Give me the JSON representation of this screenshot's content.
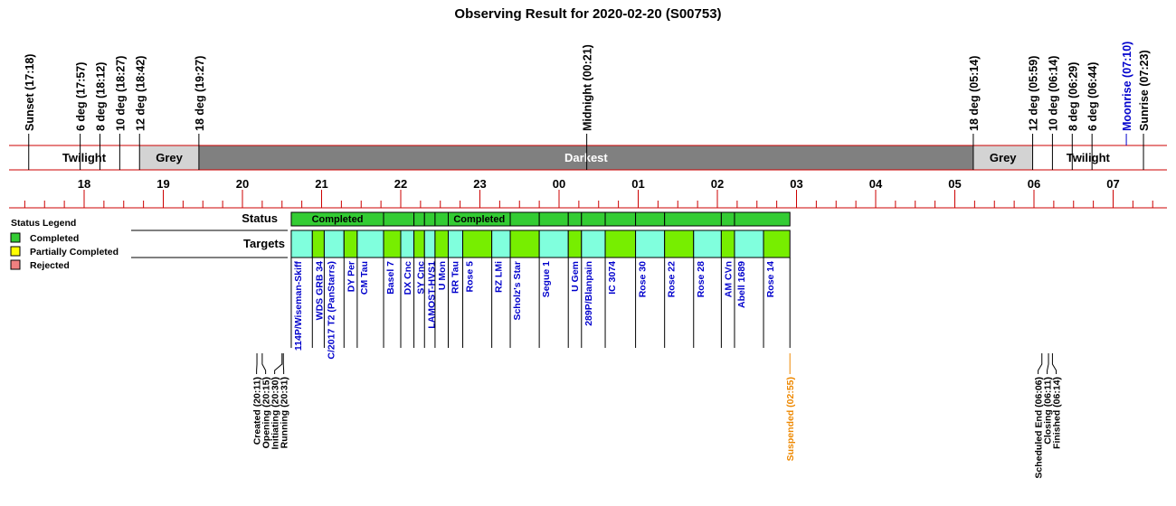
{
  "title": "Observing Result for 2020-02-20 (S00753)",
  "colors": {
    "twilight": "#ffffff",
    "grey": "#d3d3d3",
    "darkest": "#808080",
    "axis": "#cc0000",
    "completed": "#33cc33",
    "partial": "#ffff00",
    "rejected": "#f08080",
    "target_cyan": "#80ffdd",
    "target_green": "#77ee00",
    "event_orange": "#ee8800",
    "moon_blue": "#0000cc",
    "target_text": "#0000cc"
  },
  "sky_events": [
    {
      "label": "Sunset (17:18)",
      "time": "17:18"
    },
    {
      "label": "6 deg (17:57)",
      "time": "17:57"
    },
    {
      "label": "8 deg (18:12)",
      "time": "18:12"
    },
    {
      "label": "10 deg (18:27)",
      "time": "18:27"
    },
    {
      "label": "12 deg (18:42)",
      "time": "18:42"
    },
    {
      "label": "18 deg (19:27)",
      "time": "19:27"
    },
    {
      "label": "Midnight (00:21)",
      "time": "24:21"
    },
    {
      "label": "18 deg (05:14)",
      "time": "29:14"
    },
    {
      "label": "12 deg (05:59)",
      "time": "29:59"
    },
    {
      "label": "10 deg (06:14)",
      "time": "30:14"
    },
    {
      "label": "8 deg (06:29)",
      "time": "30:29"
    },
    {
      "label": "6 deg (06:44)",
      "time": "30:44"
    },
    {
      "label": "Moonrise (07:10)",
      "time": "31:10",
      "moon": true
    },
    {
      "label": "Sunrise (07:23)",
      "time": "31:23"
    }
  ],
  "bands": [
    {
      "label": "Twilight",
      "start": "17:18",
      "end": "18:42",
      "kind": "twilight"
    },
    {
      "label": "Grey",
      "start": "18:42",
      "end": "19:27",
      "kind": "grey"
    },
    {
      "label": "Darkest",
      "start": "19:27",
      "end": "29:14",
      "kind": "darkest"
    },
    {
      "label": "Grey",
      "start": "29:14",
      "end": "29:59",
      "kind": "grey"
    },
    {
      "label": "Twilight",
      "start": "29:59",
      "end": "31:23",
      "kind": "twilight"
    }
  ],
  "hour_labels": [
    "18",
    "19",
    "20",
    "21",
    "22",
    "23",
    "00",
    "01",
    "02",
    "03",
    "04",
    "05",
    "06",
    "07"
  ],
  "legend": {
    "title": "Status Legend",
    "items": [
      {
        "label": "Completed",
        "color": "#33cc33"
      },
      {
        "label": "Partially Completed",
        "color": "#ffff00"
      },
      {
        "label": "Rejected",
        "color": "#f08080"
      }
    ]
  },
  "row_labels": {
    "status": "Status",
    "targets": "Targets"
  },
  "status_blocks": [
    {
      "start": "20:37",
      "end": "21:47",
      "label": "Completed"
    },
    {
      "start": "21:47",
      "end": "22:10",
      "label": ""
    },
    {
      "start": "22:10",
      "end": "22:18",
      "label": ""
    },
    {
      "start": "22:18",
      "end": "22:26",
      "label": ""
    },
    {
      "start": "22:26",
      "end": "22:36",
      "label": ""
    },
    {
      "start": "22:36",
      "end": "23:23",
      "label": "Completed"
    },
    {
      "start": "23:23",
      "end": "23:45",
      "label": ""
    },
    {
      "start": "23:45",
      "end": "24:07",
      "label": ""
    },
    {
      "start": "24:07",
      "end": "24:17",
      "label": ""
    },
    {
      "start": "24:17",
      "end": "24:35",
      "label": ""
    },
    {
      "start": "24:35",
      "end": "24:58",
      "label": ""
    },
    {
      "start": "24:58",
      "end": "25:20",
      "label": ""
    },
    {
      "start": "25:20",
      "end": "26:03",
      "label": ""
    },
    {
      "start": "26:03",
      "end": "26:13",
      "label": ""
    },
    {
      "start": "26:13",
      "end": "26:55",
      "label": ""
    }
  ],
  "targets": [
    {
      "name": "114P/Wiseman-Skiff",
      "start": "20:37",
      "end": "20:53",
      "fill": "cyan"
    },
    {
      "name": "WDS GRB 34",
      "start": "20:53",
      "end": "21:02",
      "fill": "green"
    },
    {
      "name": "C/2017 T2 (PanStarrs)",
      "start": "21:02",
      "end": "21:17",
      "fill": "cyan"
    },
    {
      "name": "DY Per",
      "start": "21:17",
      "end": "21:27",
      "fill": "green"
    },
    {
      "name": "CM Tau",
      "start": "21:27",
      "end": "21:47",
      "fill": "cyan"
    },
    {
      "name": "Basel 7",
      "start": "21:47",
      "end": "22:00",
      "fill": "green"
    },
    {
      "name": "DX Cnc",
      "start": "22:00",
      "end": "22:10",
      "fill": "cyan"
    },
    {
      "name": "SY Cnc",
      "start": "22:10",
      "end": "22:18",
      "fill": "green"
    },
    {
      "name": "LAMOST-HVS1",
      "start": "22:18",
      "end": "22:26",
      "fill": "cyan"
    },
    {
      "name": "U Mon",
      "start": "22:26",
      "end": "22:36",
      "fill": "green"
    },
    {
      "name": "RR Tau",
      "start": "22:36",
      "end": "22:47",
      "fill": "cyan"
    },
    {
      "name": "Rose 5",
      "start": "22:47",
      "end": "23:09",
      "fill": "green"
    },
    {
      "name": "RZ LMi",
      "start": "23:09",
      "end": "23:23",
      "fill": "cyan"
    },
    {
      "name": "Scholz's Star",
      "start": "23:23",
      "end": "23:45",
      "fill": "green"
    },
    {
      "name": "Segue 1",
      "start": "23:45",
      "end": "24:07",
      "fill": "cyan"
    },
    {
      "name": "U Gem",
      "start": "24:07",
      "end": "24:17",
      "fill": "green"
    },
    {
      "name": "289P/Blanpain",
      "start": "24:17",
      "end": "24:35",
      "fill": "cyan"
    },
    {
      "name": "IC 3074",
      "start": "24:35",
      "end": "24:58",
      "fill": "green"
    },
    {
      "name": "Rose 30",
      "start": "24:58",
      "end": "25:20",
      "fill": "cyan"
    },
    {
      "name": "Rose 22",
      "start": "25:20",
      "end": "25:42",
      "fill": "green"
    },
    {
      "name": "Rose 28",
      "start": "25:42",
      "end": "26:03",
      "fill": "cyan"
    },
    {
      "name": "AM CVn",
      "start": "26:03",
      "end": "26:13",
      "fill": "green"
    },
    {
      "name": "Abell 1689",
      "start": "26:13",
      "end": "26:35",
      "fill": "cyan"
    },
    {
      "name": "Rose 14",
      "start": "26:35",
      "end": "26:55",
      "fill": "green"
    }
  ],
  "events": [
    {
      "label": "Created (20:11)",
      "time": "20:11"
    },
    {
      "label": "Opening (20:15)",
      "time": "20:15"
    },
    {
      "label": "Initiating (20:30)",
      "time": "20:30"
    },
    {
      "label": "Running (20:31)",
      "time": "20:31"
    },
    {
      "label": "Suspended (02:55)",
      "time": "26:55",
      "orange": true
    },
    {
      "label": "Scheduled End (06:06)",
      "time": "30:06"
    },
    {
      "label": "Closing (06:11)",
      "time": "30:11"
    },
    {
      "label": "Finished (06:14)",
      "time": "30:14"
    }
  ]
}
